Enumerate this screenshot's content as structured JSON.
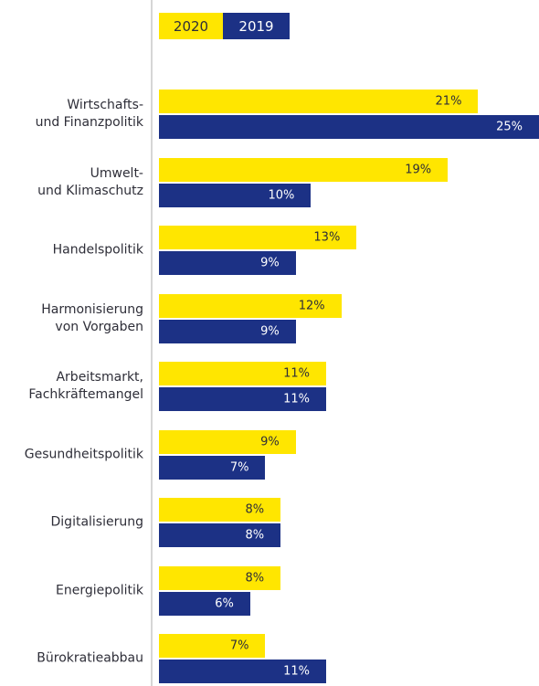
{
  "chart_data": {
    "type": "bar",
    "orientation": "horizontal",
    "categories": [
      "Wirtschafts-\nund Finanzpolitik",
      "Umwelt-\nund Klimaschutz",
      "Handelspolitik",
      "Harmonisierung\nvon Vorgaben",
      "Arbeitsmarkt,\nFachkräftemangel",
      "Gesundheitspolitik",
      "Digitalisierung",
      "Energiepolitik",
      "Bürokratieabbau"
    ],
    "series": [
      {
        "name": "2020",
        "color": "#ffe600",
        "values": [
          21,
          19,
          13,
          12,
          11,
          9,
          8,
          8,
          7
        ],
        "value_labels": [
          "21%",
          "19%",
          "13%",
          "12%",
          "11%",
          "9%",
          "8%",
          "8%",
          "7%"
        ]
      },
      {
        "name": "2019",
        "color": "#1c3185",
        "values": [
          25,
          10,
          9,
          9,
          11,
          7,
          8,
          6,
          11
        ],
        "value_labels": [
          "25%",
          "10%",
          "9%",
          "9%",
          "11%",
          "7%",
          "8%",
          "6%",
          "11%"
        ]
      }
    ],
    "xlim": [
      0,
      25
    ],
    "legend": "top"
  }
}
